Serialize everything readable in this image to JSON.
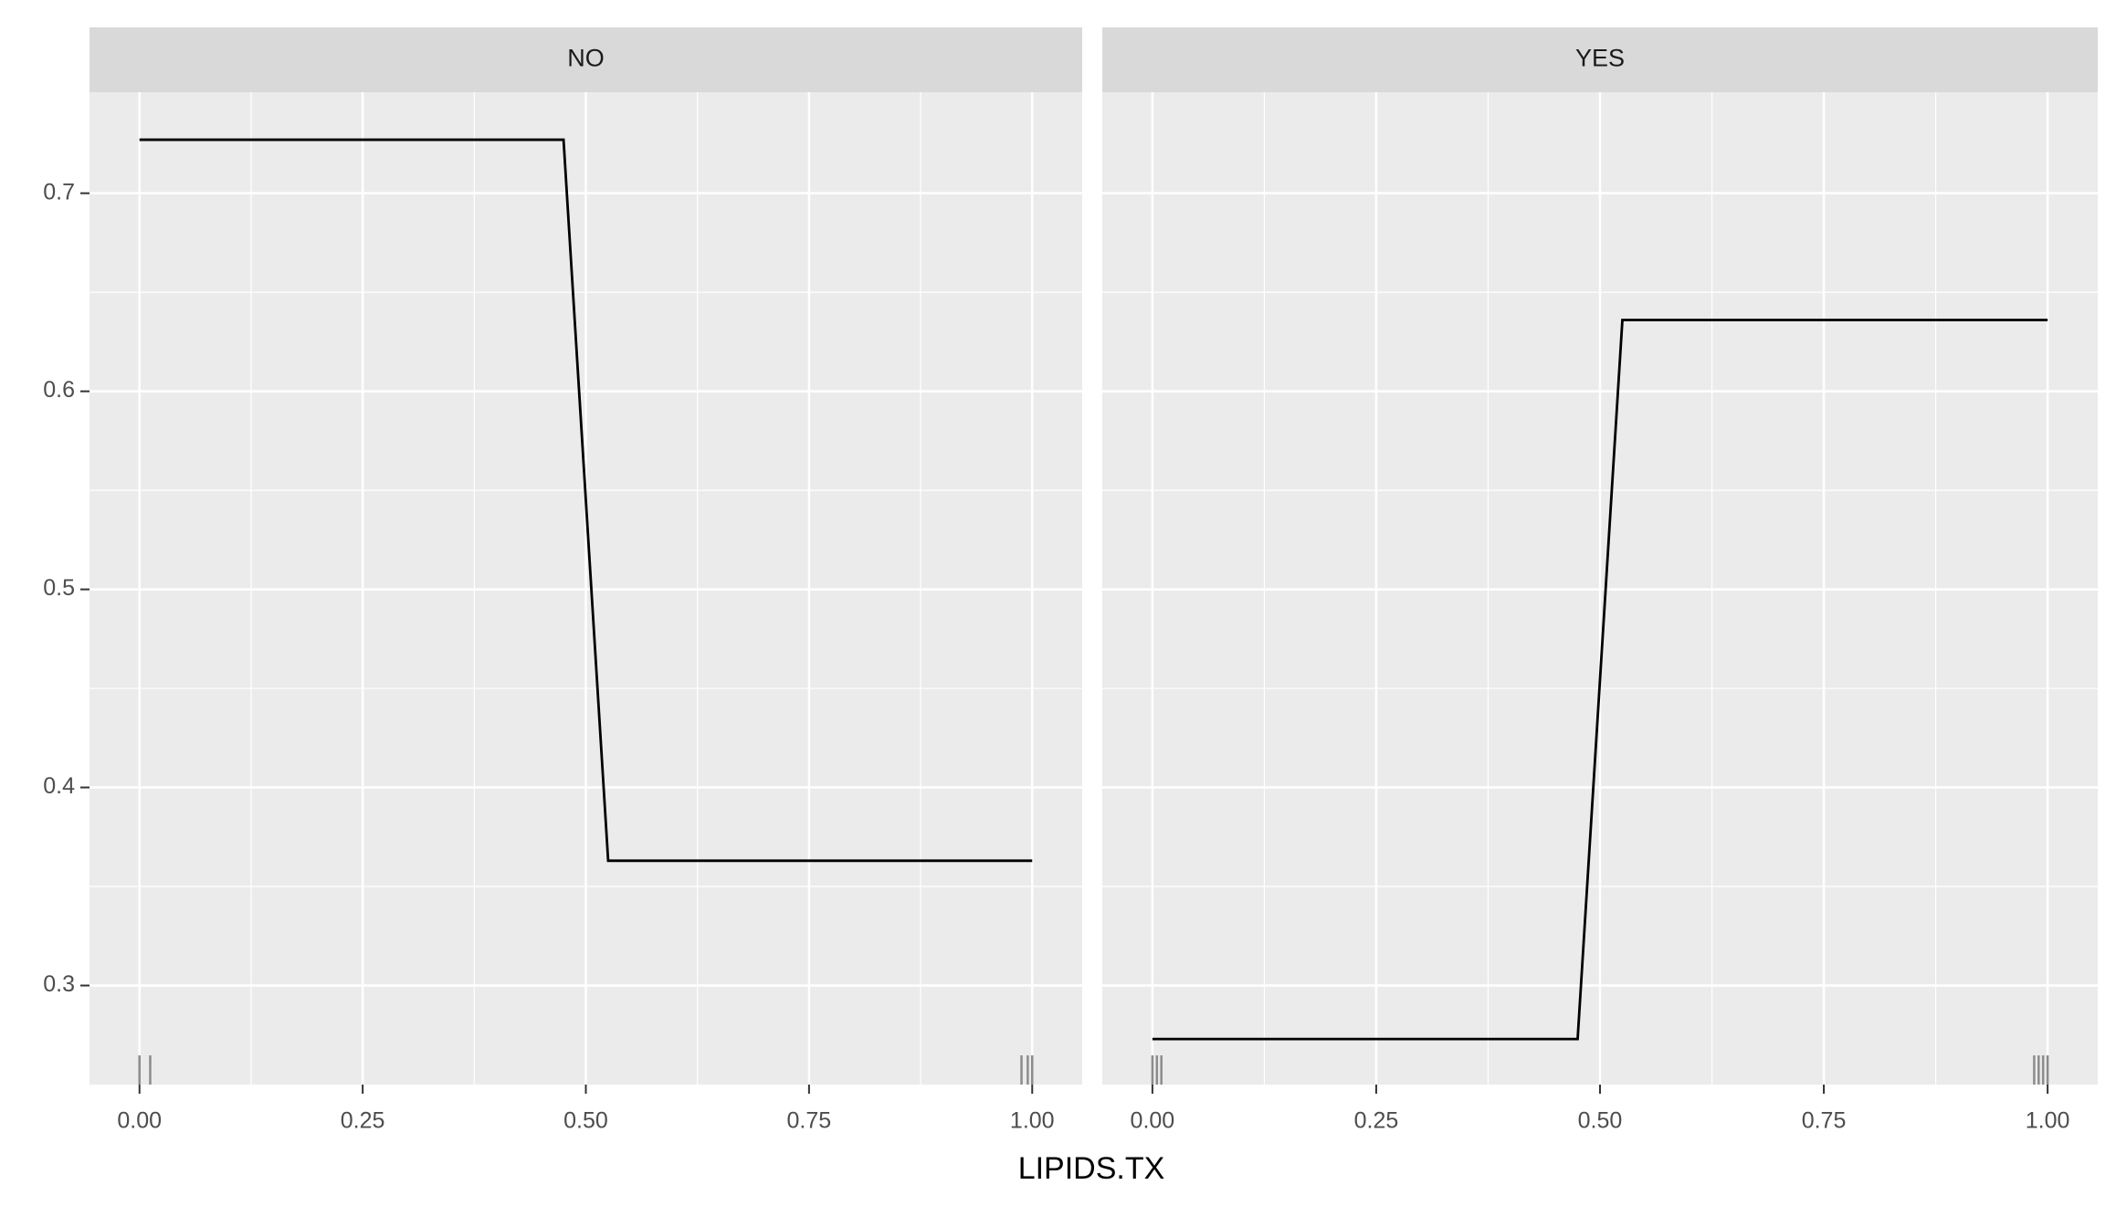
{
  "chart_data": {
    "type": "line",
    "xlabel": "LIPIDS.TX",
    "color": "#000000",
    "rug_color": "#8c8c8c",
    "xlim": [
      -0.056,
      1.056
    ],
    "ylim": [
      0.25,
      0.751
    ],
    "xticks": [
      {
        "value": 0,
        "label": "0.00"
      },
      {
        "value": 0.25,
        "label": "0.25"
      },
      {
        "value": 0.5,
        "label": "0.50"
      },
      {
        "value": 0.75,
        "label": "0.75"
      },
      {
        "value": 1,
        "label": "1.00"
      }
    ],
    "yticks": [
      0.3,
      0.4,
      0.5,
      0.6,
      0.7
    ],
    "grid": true,
    "panels": [
      {
        "title": "NO",
        "x": [
          0,
          0.475,
          0.525,
          1
        ],
        "values": [
          0.727,
          0.727,
          0.363,
          0.363
        ],
        "rug": [
          0,
          0.012,
          0.988,
          0.995,
          1
        ]
      },
      {
        "title": "YES",
        "x": [
          0,
          0.475,
          0.525,
          1
        ],
        "values": [
          0.273,
          0.273,
          0.636,
          0.636
        ],
        "rug": [
          0,
          0.005,
          0.01,
          0.985,
          0.99,
          0.995,
          1
        ]
      }
    ]
  }
}
